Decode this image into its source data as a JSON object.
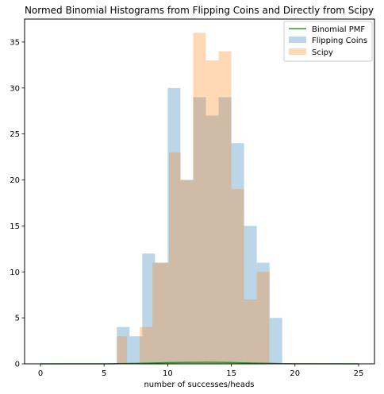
{
  "chart_data": {
    "type": "bar",
    "title": "Normed Binomial Histograms from Flipping Coins and Directly from Scipy",
    "xlabel": "number of successes/heads",
    "ylabel": "",
    "xlim": [
      -1.25,
      26.25
    ],
    "ylim": [
      0,
      37.5
    ],
    "xticks": [
      0,
      5,
      10,
      15,
      20,
      25
    ],
    "yticks": [
      0,
      5,
      10,
      15,
      20,
      25,
      30,
      35
    ],
    "grid": false,
    "legend_position": "top-right",
    "series": [
      {
        "name": "Flipping Coins",
        "kind": "histogram",
        "color": "#1f77b4",
        "alpha": 0.3,
        "bins": [
          {
            "x0": 6.0,
            "x1": 7.0,
            "count": 4
          },
          {
            "x0": 7.0,
            "x1": 8.0,
            "count": 3
          },
          {
            "x0": 8.0,
            "x1": 9.0,
            "count": 12
          },
          {
            "x0": 9.0,
            "x1": 10.0,
            "count": 11
          },
          {
            "x0": 10.0,
            "x1": 11.0,
            "count": 30
          },
          {
            "x0": 11.0,
            "x1": 12.0,
            "count": 20
          },
          {
            "x0": 12.0,
            "x1": 13.0,
            "count": 29
          },
          {
            "x0": 13.0,
            "x1": 14.0,
            "count": 27
          },
          {
            "x0": 14.0,
            "x1": 15.0,
            "count": 29
          },
          {
            "x0": 15.0,
            "x1": 16.0,
            "count": 24
          },
          {
            "x0": 16.0,
            "x1": 17.0,
            "count": 15
          },
          {
            "x0": 17.0,
            "x1": 18.0,
            "count": 11
          },
          {
            "x0": 18.0,
            "x1": 19.0,
            "count": 5
          }
        ]
      },
      {
        "name": "Scipy",
        "kind": "histogram",
        "color": "#ff7f0e",
        "alpha": 0.3,
        "bins": [
          {
            "x0": 6.0,
            "x1": 6.8,
            "count": 3
          },
          {
            "x0": 6.8,
            "x1": 7.8,
            "count": 0
          },
          {
            "x0": 7.8,
            "x1": 8.8,
            "count": 4
          },
          {
            "x0": 8.8,
            "x1": 10.1,
            "count": 11
          },
          {
            "x0": 10.1,
            "x1": 11.0,
            "count": 23
          },
          {
            "x0": 11.0,
            "x1": 12.0,
            "count": 20
          },
          {
            "x0": 12.0,
            "x1": 13.0,
            "count": 36
          },
          {
            "x0": 13.0,
            "x1": 14.0,
            "count": 33
          },
          {
            "x0": 14.0,
            "x1": 15.0,
            "count": 34
          },
          {
            "x0": 15.0,
            "x1": 16.0,
            "count": 19
          },
          {
            "x0": 16.0,
            "x1": 17.0,
            "count": 7
          },
          {
            "x0": 17.0,
            "x1": 18.0,
            "count": 10
          }
        ]
      },
      {
        "name": "Binomial PMF",
        "kind": "line",
        "color": "#2ca02c",
        "x": [
          0,
          5,
          6,
          7,
          8,
          9,
          10,
          11,
          12,
          13,
          14,
          15,
          16,
          17,
          18,
          19,
          20,
          25
        ],
        "values": [
          0.0,
          0.0,
          0.02,
          0.04,
          0.07,
          0.1,
          0.13,
          0.15,
          0.16,
          0.17,
          0.16,
          0.14,
          0.11,
          0.08,
          0.05,
          0.02,
          0.01,
          0.0
        ]
      }
    ],
    "legend_order": [
      "Binomial PMF",
      "Flipping Coins",
      "Scipy"
    ]
  }
}
